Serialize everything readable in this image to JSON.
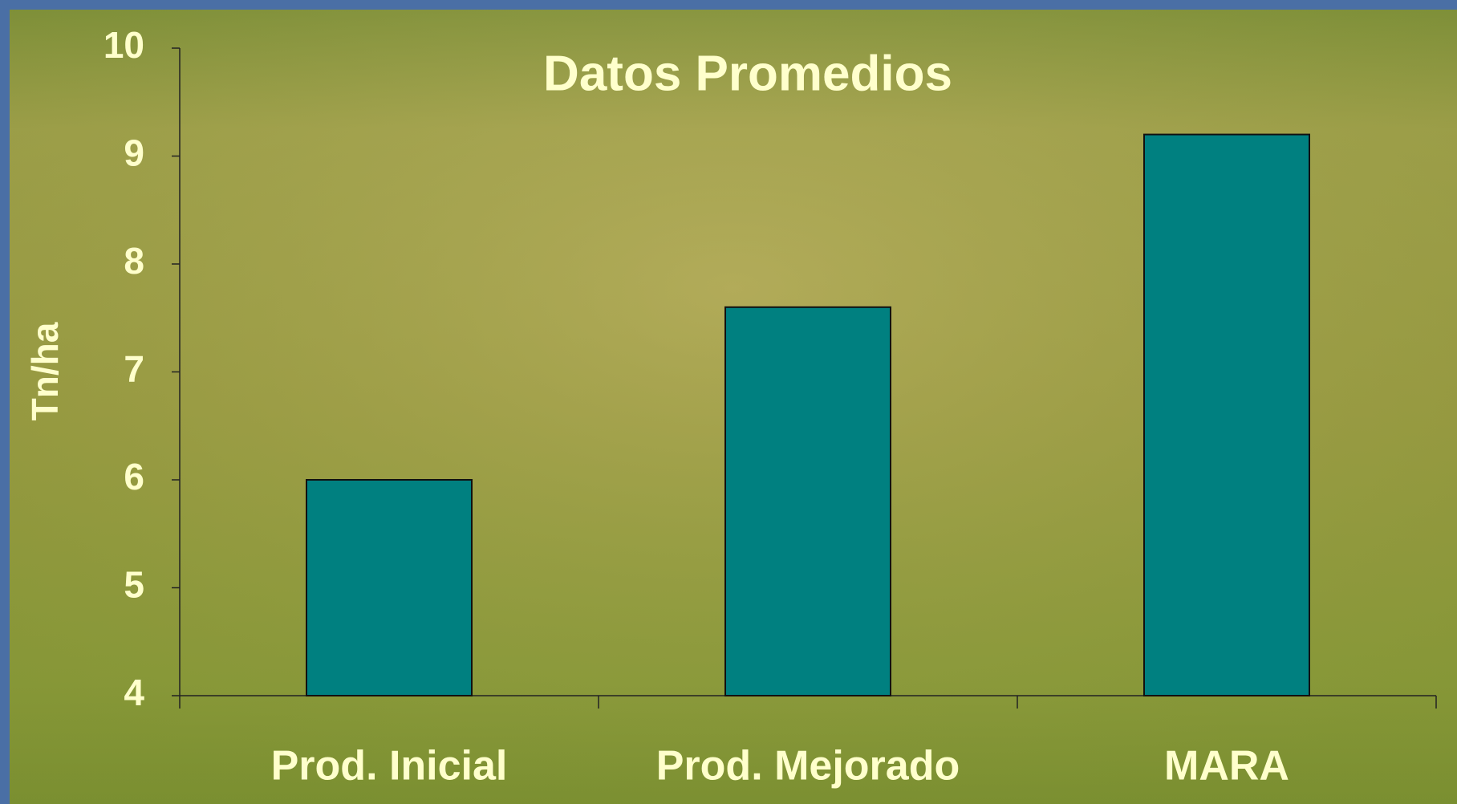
{
  "chart_data": {
    "type": "bar",
    "title": "Datos Promedios",
    "y_label": "Tn/ha",
    "categories": [
      "Prod. Inicial",
      "Prod. Mejorado",
      "MARA"
    ],
    "values": [
      6.0,
      7.6,
      9.2
    ],
    "color": "#008080",
    "ylim": [
      4,
      10
    ],
    "yticks": [
      4,
      5,
      6,
      7,
      8,
      9,
      10
    ],
    "grid": false
  }
}
